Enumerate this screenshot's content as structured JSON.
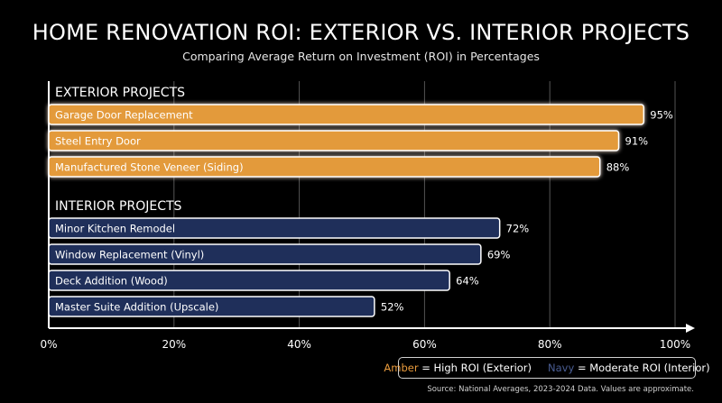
{
  "colors": {
    "background": "#000000",
    "amber": "#e39a3a",
    "navy": "#1f2f5a",
    "bar_border": "#ffffff",
    "grid": "#555555"
  },
  "chart_data": {
    "type": "bar",
    "orientation": "horizontal",
    "title": "HOME RENOVATION ROI: EXTERIOR VS. INTERIOR PROJECTS",
    "subtitle": "Comparing Average Return on Investment (ROI) in Percentages",
    "xlim": [
      0,
      100
    ],
    "x_ticks": [
      "0%",
      "20%",
      "40%",
      "60%",
      "80%",
      "100%"
    ],
    "x_tick_values": [
      0,
      20,
      40,
      60,
      80,
      100
    ],
    "grid": true,
    "groups": [
      {
        "label": "EXTERIOR PROJECTS",
        "color": "#e39a3a",
        "bars": [
          {
            "category": "Garage Door Replacement",
            "value": 95,
            "value_label": "95%"
          },
          {
            "category": "Steel Entry Door",
            "value": 91,
            "value_label": "91%"
          },
          {
            "category": "Manufactured Stone Veneer (Siding)",
            "value": 88,
            "value_label": "88%"
          }
        ]
      },
      {
        "label": "INTERIOR PROJECTS",
        "color": "#1f2f5a",
        "bars": [
          {
            "category": "Minor Kitchen Remodel",
            "value": 72,
            "value_label": "72%"
          },
          {
            "category": "Window Replacement (Vinyl)",
            "value": 69,
            "value_label": "69%"
          },
          {
            "category": "Deck Addition (Wood)",
            "value": 64,
            "value_label": "64%"
          },
          {
            "category": "Master Suite Addition (Upscale)",
            "value": 52,
            "value_label": "52%"
          }
        ]
      }
    ],
    "legend": {
      "position": "bottom-right",
      "amber_word": "Amber",
      "amber_text": " = High ROI (Exterior)",
      "navy_word": "Navy",
      "navy_text": " = Moderate ROI (Interior)"
    },
    "source": "Source: National Averages, 2023-2024 Data. Values are approximate."
  }
}
